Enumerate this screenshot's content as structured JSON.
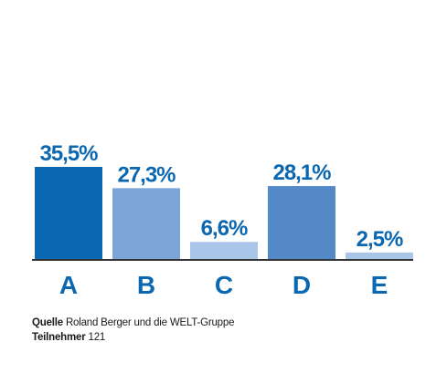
{
  "chart_data": {
    "type": "bar",
    "categories": [
      "A",
      "B",
      "C",
      "D",
      "E"
    ],
    "values": [
      35.5,
      27.3,
      6.6,
      28.1,
      2.5
    ],
    "value_labels": [
      "35,5%",
      "27,3%",
      "6,6%",
      "28,1%",
      "2,5%"
    ],
    "bar_colors": [
      "#0a67b0",
      "#7da6d8",
      "#a9c6e8",
      "#5489c7",
      "#a9c6e8"
    ],
    "label_color": "#0a67b0",
    "axis_color": "#333333",
    "ylim": [
      0,
      35.5
    ],
    "grid": false,
    "legend": "none"
  },
  "footer": {
    "source_label": "Quelle",
    "source_text": " Roland Berger und die WELT-Gruppe",
    "participants_label": "Teilnehmer",
    "participants_text": " 121"
  }
}
